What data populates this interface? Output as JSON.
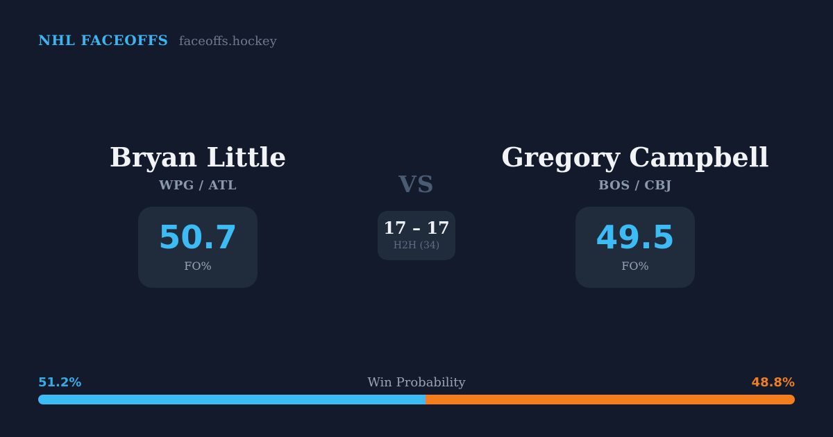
{
  "header": {
    "brand": "NHL FACEOFFS",
    "site": "faceoffs.hockey"
  },
  "matchup": {
    "vs_label": "VS",
    "h2h": {
      "score": "17 – 17",
      "label": "H2H (34)"
    },
    "players": [
      {
        "name": "Bryan Little",
        "teams": "WPG / ATL",
        "fo_pct": "50.7",
        "fo_label": "FO%"
      },
      {
        "name": "Gregory Campbell",
        "teams": "BOS / CBJ",
        "fo_pct": "49.5",
        "fo_label": "FO%"
      }
    ]
  },
  "win_probability": {
    "label": "Win Probability",
    "left_pct_text": "51.2%",
    "right_pct_text": "48.8%",
    "left_value": 51.2,
    "right_value": 48.8,
    "left_color": "#3abcf6",
    "right_color": "#f57d1e"
  },
  "colors": {
    "background": "#121a2b",
    "panel": "#202b3b",
    "accent_blue": "#3dbbf5",
    "accent_orange": "#f57d1e",
    "brand_blue": "#3db3ef",
    "name_white": "#f1f3f7",
    "muted_gray": "#8c98ac"
  }
}
